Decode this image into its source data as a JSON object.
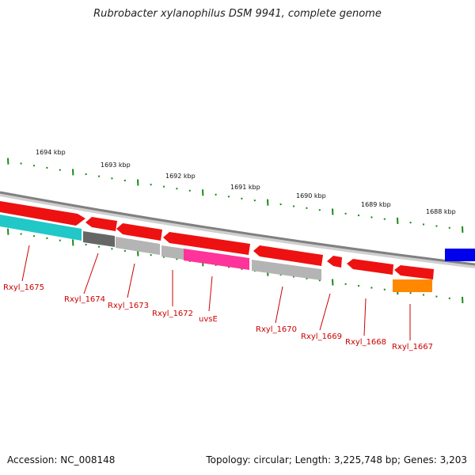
{
  "title": "Rubrobacter xylanophilus DSM 9941, complete genome",
  "footer": {
    "accession": "Accession: NC_008148",
    "topology": "Topology: circular; Length: 3,225,748 bp; Genes: 3,203"
  },
  "scale_labels": [
    "1694 kbp",
    "1693 kbp",
    "1692 kbp",
    "1691 kbp",
    "1690 kbp",
    "1689 kbp",
    "1688 kbp"
  ],
  "genes": [
    {
      "name": "Rxyl_1675",
      "color": "#20c8c8",
      "strand": "plus"
    },
    {
      "name": "Rxyl_1674",
      "color": "#666666",
      "strand": "plus"
    },
    {
      "name": "Rxyl_1673",
      "color": "#b4b4b4",
      "strand": "plus"
    },
    {
      "name": "Rxyl_1672",
      "color": "#b4b4b4",
      "strand": "plus"
    },
    {
      "name": "uvsE",
      "color": "#ff3399",
      "strand": "plus"
    },
    {
      "name": "Rxyl_1670",
      "color": "#b4b4b4",
      "strand": "plus"
    },
    {
      "name": "Rxyl_1669",
      "color": "#ee1111",
      "strand": "minus"
    },
    {
      "name": "Rxyl_1668",
      "color": "#ee1111",
      "strand": "minus"
    },
    {
      "name": "Rxyl_1667",
      "color": "#ff8800",
      "strand": "plus"
    }
  ],
  "colors": {
    "backbone": "#808080",
    "red_feature": "#ee1111",
    "blue_feature": "#0000ee",
    "tick": "#1a8a1a",
    "label": "#cc0000"
  }
}
